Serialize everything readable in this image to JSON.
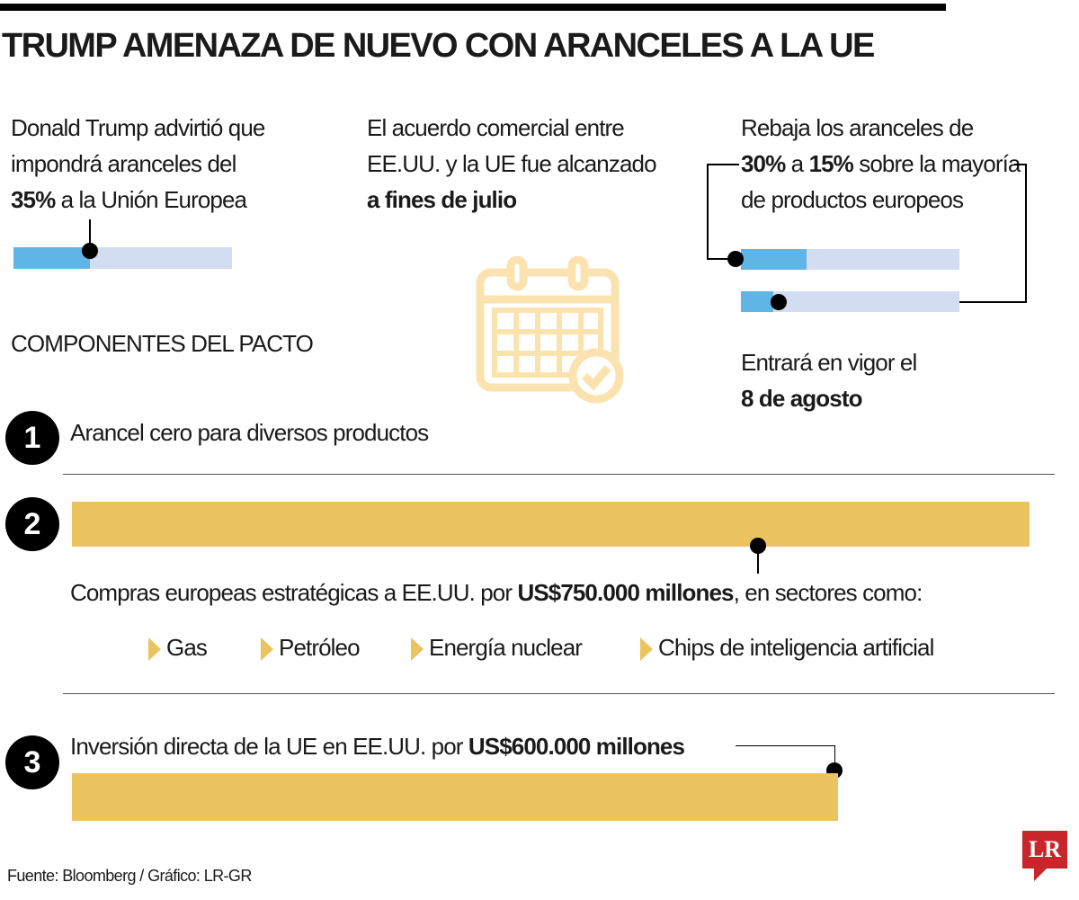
{
  "title": "TRUMP AMENAZA DE NUEVO CON ARANCELES A LA UE",
  "colors": {
    "blue": "#5eb5e6",
    "light_blue": "#d3ddf1",
    "gold": "#ebc35f",
    "brand_red": "#c8262b"
  },
  "col1": {
    "line1": "Donald Trump advirtió que",
    "line2": "impondrá aranceles del",
    "bold": "35%",
    "rest": " a la Unión Europea",
    "bar_percent": 35
  },
  "col2": {
    "line1": "El acuerdo comercial entre",
    "line2": "EE.UU. y la UE fue alcanzado",
    "bold": "a fines de julio",
    "icon": "calendar-check-icon"
  },
  "col3": {
    "line1": "Rebaja los aranceles de",
    "bold1": "30%",
    "mid": " a ",
    "bold2": "15%",
    "rest": " sobre la mayoría",
    "line3": "de productos europeos",
    "bar_from_percent": 30,
    "bar_to_percent": 15,
    "vigor": "Entrará en vigor el",
    "vigor_bold": "8 de agosto"
  },
  "components_heading": "COMPONENTES DEL PACTO",
  "items": [
    {
      "number": "1",
      "text": "Arancel cero para diversos productos"
    },
    {
      "number": "2",
      "pre": "Compras europeas estratégicas a EE.UU. por ",
      "bold": "US$750.000 millones",
      "post": ", en sectores como:",
      "value": 750000,
      "sectors": [
        "Gas",
        "Petróleo",
        "Energía nuclear",
        "Chips de inteligencia artificial"
      ]
    },
    {
      "number": "3",
      "pre": "Inversión directa de la UE en EE.UU. por ",
      "bold": "US$600.000 millones",
      "value": 600000
    }
  ],
  "footer": "Fuente: Bloomberg / Gráfico: LR-GR",
  "logo": "LR"
}
